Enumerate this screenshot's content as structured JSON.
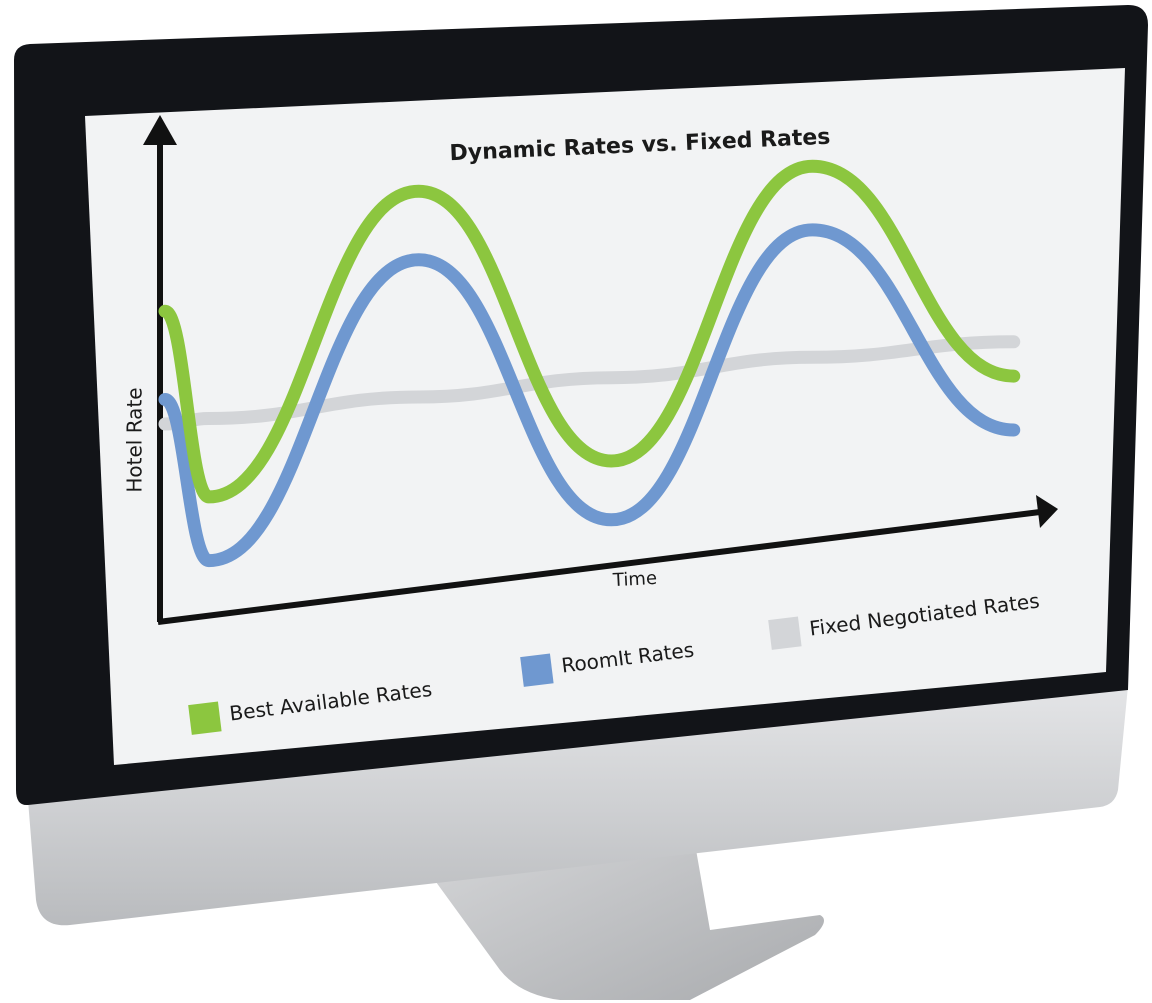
{
  "chart_data": {
    "type": "line",
    "title": "Dynamic Rates vs. Fixed Rates",
    "x_label": "Time",
    "y_label": "Hotel Rate",
    "x": [
      0,
      5,
      29,
      51,
      74,
      97
    ],
    "xlim": [
      0,
      100
    ],
    "ylim": [
      0,
      100
    ],
    "series": [
      {
        "name": "Best Available Rates",
        "color": "#8cc63f",
        "values": [
          63,
          24,
          81,
          21,
          76,
          28
        ]
      },
      {
        "name": "RoomIt Rates",
        "color": "#6f98d0",
        "values": [
          45,
          11,
          67,
          9,
          63,
          17
        ]
      },
      {
        "name": "Fixed Negotiated Rates",
        "color": "#d3d5d8",
        "values": [
          40,
          40,
          39,
          38,
          37,
          35
        ]
      }
    ]
  }
}
